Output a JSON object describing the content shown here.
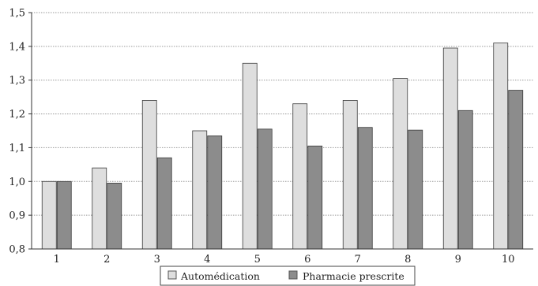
{
  "chart_data": {
    "type": "bar",
    "categories": [
      "1",
      "2",
      "3",
      "4",
      "5",
      "6",
      "7",
      "8",
      "9",
      "10"
    ],
    "series": [
      {
        "name": "Automédication",
        "color": "#dedede",
        "values": [
          1.0,
          1.04,
          1.24,
          1.15,
          1.35,
          1.23,
          1.24,
          1.305,
          1.395,
          1.41
        ]
      },
      {
        "name": "Pharmacie prescrite",
        "color": "#8c8c8c",
        "values": [
          1.0,
          0.995,
          1.07,
          1.135,
          1.155,
          1.105,
          1.16,
          1.152,
          1.21,
          1.27
        ]
      }
    ],
    "yticks": [
      "0,8",
      "0,9",
      "1,0",
      "1,1",
      "1,2",
      "1,3",
      "1,4",
      "1,5"
    ],
    "ylim": [
      0.8,
      1.5
    ],
    "grid": true,
    "legend_position": "bottom-center",
    "title": "",
    "xlabel": "",
    "ylabel": ""
  }
}
